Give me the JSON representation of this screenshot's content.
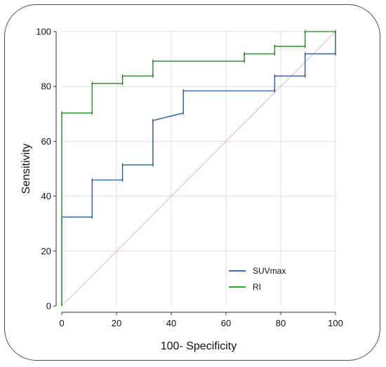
{
  "chart_data": {
    "type": "line",
    "xlabel": "100- Specificity",
    "ylabel": "Sensitivity",
    "xlim": [
      0,
      100
    ],
    "ylim": [
      0,
      100
    ],
    "xticks": [
      0,
      20,
      40,
      60,
      80,
      100
    ],
    "yticks": [
      0,
      20,
      40,
      60,
      80,
      100
    ],
    "grid": true,
    "legend_position": "bottom-right",
    "diagonal_color": "#e8b4b4",
    "series": [
      {
        "name": "SUVmax",
        "color": "#3b6db3",
        "points": [
          [
            0,
            0
          ],
          [
            0,
            32.4
          ],
          [
            11.1,
            32.4
          ],
          [
            11.1,
            45.9
          ],
          [
            22.2,
            45.9
          ],
          [
            22.2,
            51.4
          ],
          [
            33.3,
            51.4
          ],
          [
            33.3,
            67.6
          ],
          [
            44.4,
            70.3
          ],
          [
            44.4,
            78.4
          ],
          [
            77.8,
            78.4
          ],
          [
            77.8,
            83.8
          ],
          [
            88.9,
            83.8
          ],
          [
            88.9,
            91.9
          ],
          [
            100,
            91.9
          ],
          [
            100,
            100
          ]
        ]
      },
      {
        "name": "RI",
        "color": "#3aa13a",
        "points": [
          [
            0,
            0
          ],
          [
            0,
            70.3
          ],
          [
            11.1,
            70.3
          ],
          [
            11.1,
            81.1
          ],
          [
            22.2,
            81.1
          ],
          [
            22.2,
            83.8
          ],
          [
            33.3,
            83.8
          ],
          [
            33.3,
            89.2
          ],
          [
            66.7,
            89.2
          ],
          [
            66.7,
            91.9
          ],
          [
            77.8,
            91.9
          ],
          [
            77.8,
            94.6
          ],
          [
            88.9,
            94.6
          ],
          [
            88.9,
            100
          ],
          [
            100,
            100
          ]
        ]
      }
    ]
  }
}
